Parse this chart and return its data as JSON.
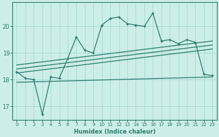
{
  "xlabel": "Humidex (Indice chaleur)",
  "ylabel": "",
  "bg_color": "#cceee8",
  "line_color": "#2d7a6e",
  "grid_color": "#aaddda",
  "xlim": [
    -0.5,
    23.5
  ],
  "ylim": [
    16.5,
    20.9
  ],
  "yticks": [
    17,
    18,
    19,
    20
  ],
  "xticks": [
    0,
    1,
    2,
    3,
    4,
    5,
    6,
    7,
    8,
    9,
    10,
    11,
    12,
    13,
    14,
    15,
    16,
    17,
    18,
    19,
    20,
    21,
    22,
    23
  ],
  "main_line_x": [
    0,
    1,
    2,
    3,
    4,
    5,
    6,
    7,
    8,
    9,
    10,
    11,
    12,
    13,
    14,
    15,
    16,
    17,
    18,
    19,
    20,
    21,
    22,
    23
  ],
  "main_line_y": [
    18.3,
    18.05,
    18.0,
    16.7,
    18.1,
    18.05,
    18.8,
    19.6,
    19.1,
    19.0,
    20.05,
    20.3,
    20.35,
    20.1,
    20.05,
    20.0,
    20.5,
    19.45,
    19.5,
    19.35,
    19.5,
    19.4,
    18.2,
    18.15
  ],
  "upper_line_x": [
    0,
    23
  ],
  "upper_line_y": [
    18.55,
    19.45
  ],
  "mid_upper_line_x": [
    0,
    23
  ],
  "mid_upper_line_y": [
    18.4,
    19.3
  ],
  "mid_lower_line_x": [
    0,
    23
  ],
  "mid_lower_line_y": [
    18.25,
    19.15
  ],
  "lower_line_x": [
    0,
    23
  ],
  "lower_line_y": [
    17.9,
    18.1
  ]
}
